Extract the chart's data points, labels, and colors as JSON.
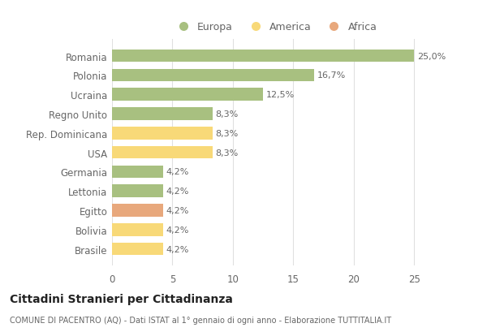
{
  "categories": [
    "Romania",
    "Polonia",
    "Ucraina",
    "Regno Unito",
    "Rep. Dominicana",
    "USA",
    "Germania",
    "Lettonia",
    "Egitto",
    "Bolivia",
    "Brasile"
  ],
  "values": [
    25.0,
    16.7,
    12.5,
    8.3,
    8.3,
    8.3,
    4.2,
    4.2,
    4.2,
    4.2,
    4.2
  ],
  "labels": [
    "25,0%",
    "16,7%",
    "12,5%",
    "8,3%",
    "8,3%",
    "8,3%",
    "4,2%",
    "4,2%",
    "4,2%",
    "4,2%",
    "4,2%"
  ],
  "colors": [
    "#a8c080",
    "#a8c080",
    "#a8c080",
    "#a8c080",
    "#f8d978",
    "#f8d978",
    "#a8c080",
    "#a8c080",
    "#e8a87c",
    "#f8d978",
    "#f8d978"
  ],
  "legend_labels": [
    "Europa",
    "America",
    "Africa"
  ],
  "legend_colors": [
    "#a8c080",
    "#f8d978",
    "#e8a87c"
  ],
  "title": "Cittadini Stranieri per Cittadinanza",
  "subtitle": "COMUNE DI PACENTRO (AQ) - Dati ISTAT al 1° gennaio di ogni anno - Elaborazione TUTTITALIA.IT",
  "xlim": [
    0,
    27
  ],
  "xticks": [
    0,
    5,
    10,
    15,
    20,
    25
  ],
  "background_color": "#ffffff",
  "grid_color": "#e0e0e0"
}
